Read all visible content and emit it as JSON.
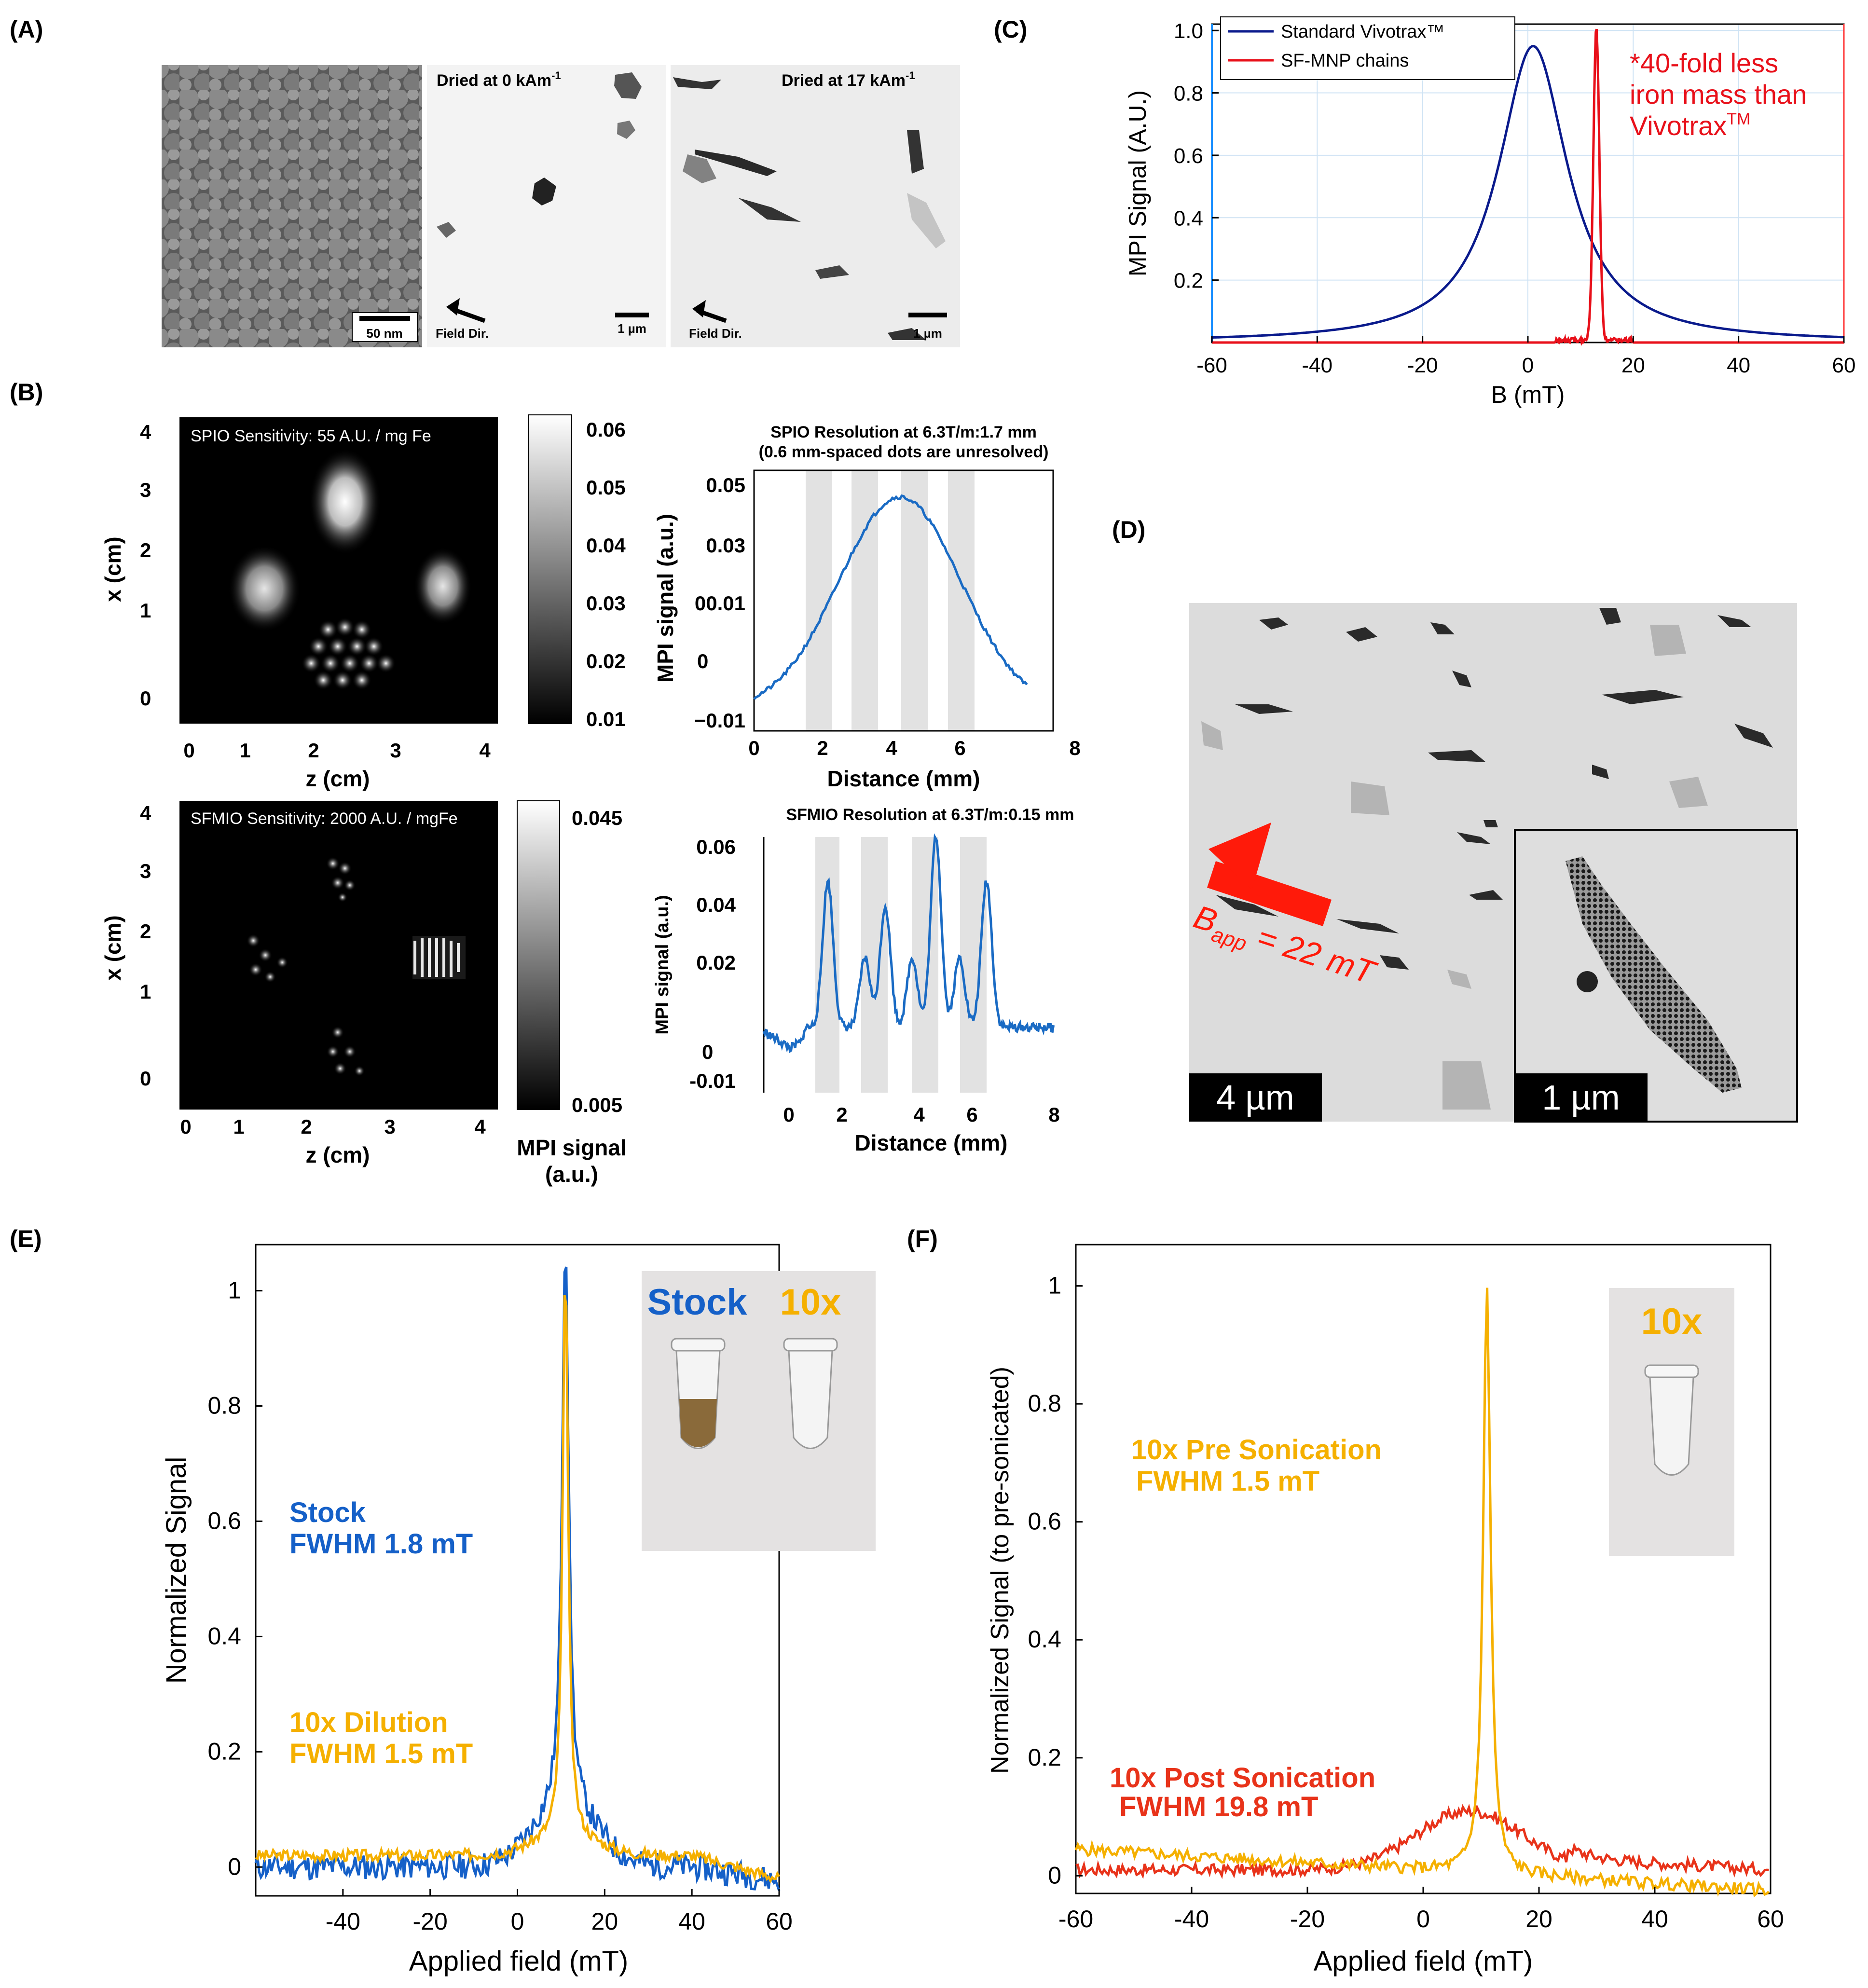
{
  "panels": {
    "A": "(A)",
    "B": "(B)",
    "C": "(C)",
    "D": "(D)",
    "E": "(E)",
    "F": "(F)"
  },
  "panel_a": {
    "scale1": "50 nm",
    "title2": "Dried at 0 kAm",
    "title2_sup": "-1",
    "title3": "Dried at 17 kAm",
    "title3_sup": "-1",
    "field_dir": "Field Dir.",
    "scale2": "1 µm",
    "scale3": "1 µm"
  },
  "panel_b": {
    "img1_title": "SPIO Sensitivity: 55 A.U. / mg Fe",
    "img2_title": "SFMIO Sensitivity: 2000 A.U. / mgFe",
    "x_label": "x (cm)",
    "z_label": "z (cm)",
    "img_ticks_y": [
      "4",
      "3",
      "2",
      "1",
      "0"
    ],
    "img_ticks_x": [
      "0",
      "1",
      "2",
      "3",
      "4"
    ],
    "cbar1_ticks": [
      "0.06",
      "0.05",
      "0.04",
      "0.03",
      "0.02",
      "0.01"
    ],
    "cbar2_ticks": [
      "0.045",
      "0.005"
    ],
    "cbar_label_1": "MPI signal",
    "cbar_label_2": "(a.u.)",
    "prof1_title_1": "SPIO Resolution at 6.3T/m:1.7 mm",
    "prof1_title_2": "(0.6 mm-spaced dots are unresolved)",
    "prof2_title": "SFMIO Resolution at 6.3T/m:0.15 mm",
    "prof_ylabel": "MPI signal (a.u.)",
    "prof_xlabel": "Distance (mm)",
    "prof1_yticks": [
      "0.05",
      "0.03",
      "00.01",
      "0",
      "−0.01"
    ],
    "prof2_yticks": [
      "0.06",
      "0.04",
      "0.02",
      "0",
      "-0.01"
    ],
    "prof1_xticks": [
      "0",
      "2",
      "4",
      "6",
      "8"
    ],
    "prof2_xticks": [
      "0",
      "2",
      "4",
      "6",
      "8"
    ]
  },
  "panel_d": {
    "arrow_label": "B",
    "arrow_label_sub": "app",
    "arrow_label_rest": " = 22 mT",
    "scale1": "4 µm",
    "scale2": "1 µm"
  },
  "chart_data": [
    {
      "id": "C",
      "type": "line",
      "xlabel": "B (mT)",
      "ylabel": "MPI Signal (A.U.)",
      "xlim": [
        -60,
        60
      ],
      "ylim": [
        0,
        1.0
      ],
      "xticks": [
        "-60",
        "-40",
        "-20",
        "0",
        "20",
        "40",
        "60"
      ],
      "yticks": [
        "1.0",
        "0.8",
        "0.6",
        "0.4",
        "0.2"
      ],
      "legend": [
        "Standard Vivotrax™",
        "SF-MNP chains"
      ],
      "annotation_1": "*40-fold less",
      "annotation_2": "iron mass than",
      "annotation_3": "Vivotrax",
      "annotation_3_sup": "TM",
      "series": [
        {
          "name": "Standard Vivotrax™",
          "color": "#0a1a8c",
          "peak_x": 1,
          "peak_y": 0.95,
          "width": 8
        },
        {
          "name": "SF-MNP chains",
          "color": "#e8101a",
          "peak_x": 13,
          "peak_y": 1.0,
          "width": 0.8
        }
      ]
    },
    {
      "id": "E",
      "type": "line",
      "xlabel": "Applied field (mT)",
      "ylabel": "Normalized Signal",
      "xlim": [
        -60,
        60
      ],
      "ylim": [
        -0.05,
        1.08
      ],
      "xticks": [
        "-40",
        "-20",
        "0",
        "20",
        "40",
        "60"
      ],
      "yticks": [
        "1",
        "0.8",
        "0.6",
        "0.4",
        "0.2",
        "0"
      ],
      "legend_stock_1": "Stock",
      "legend_stock_2": "FWHM 1.8 mT",
      "legend_dil_1": "10x Dilution",
      "legend_dil_2": "FWHM 1.5 mT",
      "photo_label_1": "Stock",
      "photo_label_2": "10x",
      "series": [
        {
          "name": "Stock",
          "color": "#1560c8",
          "peak_x": 11,
          "peak_y": 1.0,
          "fwhm": 1.8
        },
        {
          "name": "10x Dilution",
          "color": "#f5b000",
          "peak_x": 11,
          "peak_y": 1.0,
          "fwhm": 1.5
        }
      ]
    },
    {
      "id": "F",
      "type": "line",
      "xlabel": "Applied field (mT)",
      "ylabel": "Normalized Signal (to pre-sonicated)",
      "xlim": [
        -60,
        60
      ],
      "ylim": [
        -0.03,
        1.07
      ],
      "xticks": [
        "-60",
        "-40",
        "-20",
        "0",
        "20",
        "40",
        "60"
      ],
      "yticks": [
        "1",
        "0.8",
        "0.6",
        "0.4",
        "0.2",
        "0"
      ],
      "legend_pre_1": "10x Pre Sonication",
      "legend_pre_2": "FWHM 1.5 mT",
      "legend_post_1": "10x Post Sonication",
      "legend_post_2": "FWHM 19.8 mT",
      "photo_label": "10x",
      "series": [
        {
          "name": "10x Pre Sonication",
          "color": "#f5b000",
          "peak_x": 11,
          "peak_y": 1.0,
          "fwhm": 1.5
        },
        {
          "name": "10x Post Sonication",
          "color": "#e8331a",
          "peak_x": 8,
          "peak_y": 0.1,
          "fwhm": 19.8
        }
      ]
    }
  ],
  "colors": {
    "blue_profile": "#1a6bc4",
    "grey_band": "#e2e2e2"
  }
}
